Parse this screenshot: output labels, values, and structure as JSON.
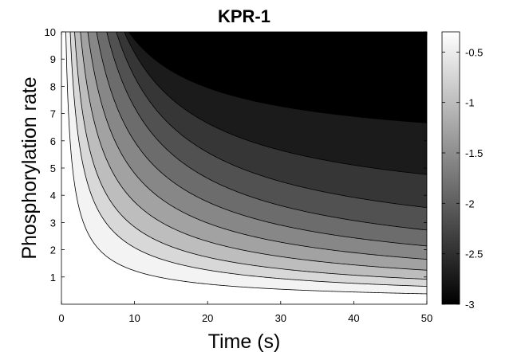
{
  "chart_data": {
    "type": "contour",
    "title": "KPR-1",
    "xlabel": "Time (s)",
    "ylabel": "Phosphorylation rate",
    "xlim": [
      0,
      50
    ],
    "ylim": [
      0,
      10
    ],
    "xticks": [
      0,
      10,
      20,
      30,
      40,
      50
    ],
    "yticks": [
      1,
      2,
      3,
      4,
      5,
      6,
      7,
      8,
      9,
      10
    ],
    "colormap": "gray",
    "colorbar": {
      "range": [
        -3,
        -0.3
      ],
      "ticks": [
        -0.5,
        -1,
        -1.5,
        -2,
        -2.5,
        -3
      ],
      "labels": [
        "-0.5",
        "-1",
        "-1.5",
        "-2",
        "-2.5",
        "-3"
      ]
    },
    "contour_levels": [
      -2.86,
      -2.57,
      -2.29,
      -2.0,
      -1.71,
      -1.43,
      -1.14,
      -0.86,
      -0.57,
      -0.29
    ],
    "contour_asymptotes_y": [
      5.35,
      2.85,
      1.5,
      0.8,
      0.5,
      0.3,
      0.18,
      0.1,
      0.05,
      0.02
    ],
    "contour_edge_time_x": [
      9.2,
      8.6,
      7.5,
      6.2,
      4.8,
      3.6,
      2.6,
      1.8,
      1.2,
      0.6
    ],
    "grid": false
  }
}
